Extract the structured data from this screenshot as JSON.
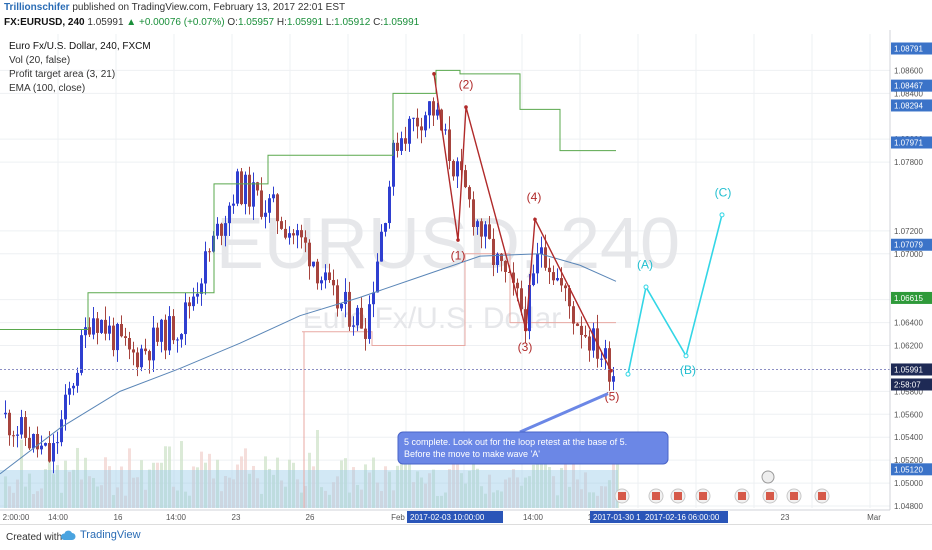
{
  "header": {
    "user": "Trillionschifer",
    "published": "published on TradingView.com, February 13, 2017 22:01 EST",
    "symbol": "FX:EURUSD, 240",
    "last": "1.05991",
    "change": "▲ +0.00076 (+0.07%)",
    "ohlc": "O:1.05957 H:1.05991 L:1.05912 C:1.05991",
    "o_label": "O:",
    "o_val": "1.05957",
    "h_label": "H:",
    "h_val": "1.05991",
    "l_label": "L:",
    "l_val": "1.05912",
    "c_label": "C:",
    "c_val": "1.05991"
  },
  "legend": {
    "symbol": "Euro Fx/U.S. Dollar, 240, FXCM",
    "vol": "Vol (20, false)",
    "pta": "Profit target area (3, 21)",
    "ema": "EMA (100, close)"
  },
  "watermark": {
    "big": "EURUSD, 240",
    "small": "Euro Fx/U.S. Dollar"
  },
  "annotation": "5 complete. Look out for the loop retest at the base of 5. Before the move to make wave 'A'",
  "footer": {
    "created": "Created with",
    "brand": "TradingView"
  },
  "colors": {
    "bull": "#2f3fd0",
    "bear": "#a6443e",
    "ema": "#5a86b7",
    "target": "#5aa84d",
    "wave": "#b02a2a",
    "projection": "#33d6e6",
    "note_bg": "#6b87e6"
  },
  "chart_data": {
    "type": "candlestick",
    "title": "Euro Fx/U.S. Dollar, 240, FXCM",
    "ylim": [
      1.048,
      1.089
    ],
    "y_ticks": [
      "1.08600",
      "1.08400",
      "1.08000",
      "1.07800",
      "1.07200",
      "1.07000",
      "1.06600",
      "1.06400",
      "1.06200",
      "1.05800",
      "1.05600",
      "1.05400",
      "1.05200",
      "1.05000",
      "1.04800"
    ],
    "x_ticks": [
      "2:00:00",
      "14:00",
      "16",
      "14:00",
      "23",
      "26",
      "Feb",
      "14:00",
      "1",
      "23",
      "Mar"
    ],
    "x_badges": [
      "2017-02-03 10:00:00",
      "2017-01-30 1",
      "2017-02-16 06:00:00"
    ],
    "price_badges": [
      {
        "label": "1.08791",
        "value": 1.08791,
        "style": "blue"
      },
      {
        "label": "1.08467",
        "value": 1.08467,
        "style": "blue"
      },
      {
        "label": "1.08294",
        "value": 1.08294,
        "style": "blue"
      },
      {
        "label": "1.07971",
        "value": 1.07971,
        "style": "blue"
      },
      {
        "label": "1.06615",
        "value": 1.06615,
        "style": "green"
      },
      {
        "label": "1.07079",
        "value": 1.07079,
        "style": "blue"
      },
      {
        "label": "1.05991",
        "value": 1.05991,
        "style": "dark"
      },
      {
        "label": "2:58:07",
        "value": 1.0586,
        "style": "dark"
      },
      {
        "label": "1.05120",
        "value": 1.0512,
        "style": "blue"
      }
    ],
    "wave_labels": [
      "(1)",
      "(2)",
      "(3)",
      "(4)",
      "(5)"
    ],
    "projection_labels": [
      "(A)",
      "(B)",
      "(C)"
    ],
    "ema_points": [
      [
        0,
        1.0508
      ],
      [
        60,
        1.0548
      ],
      [
        120,
        1.058
      ],
      [
        180,
        1.06
      ],
      [
        240,
        1.0622
      ],
      [
        300,
        1.0646
      ],
      [
        360,
        1.0662
      ],
      [
        420,
        1.068
      ],
      [
        480,
        1.0698
      ],
      [
        540,
        1.07
      ],
      [
        580,
        1.069
      ],
      [
        616,
        1.0676
      ]
    ],
    "target_steps": [
      [
        0,
        1.0634
      ],
      [
        88,
        1.0634
      ],
      [
        88,
        1.0666
      ],
      [
        214,
        1.0666
      ],
      [
        214,
        1.0761
      ],
      [
        268,
        1.0761
      ],
      [
        268,
        1.0786
      ],
      [
        393,
        1.0786
      ],
      [
        393,
        1.084
      ],
      [
        436,
        1.084
      ],
      [
        436,
        1.086
      ],
      [
        460,
        1.086
      ],
      [
        460,
        1.0857
      ],
      [
        520,
        1.0857
      ],
      [
        520,
        1.0826
      ],
      [
        560,
        1.0826
      ],
      [
        560,
        1.079
      ],
      [
        616,
        1.079
      ]
    ],
    "wave_points": [
      [
        434,
        1.0857
      ],
      [
        458,
        1.0712
      ],
      [
        466,
        1.0828
      ],
      [
        526,
        1.0634
      ],
      [
        535,
        1.073
      ],
      [
        611,
        1.0598
      ]
    ],
    "projection_points": [
      [
        628,
        1.0595
      ],
      [
        646,
        1.0671
      ],
      [
        686,
        1.0611
      ],
      [
        722,
        1.0734
      ]
    ]
  }
}
